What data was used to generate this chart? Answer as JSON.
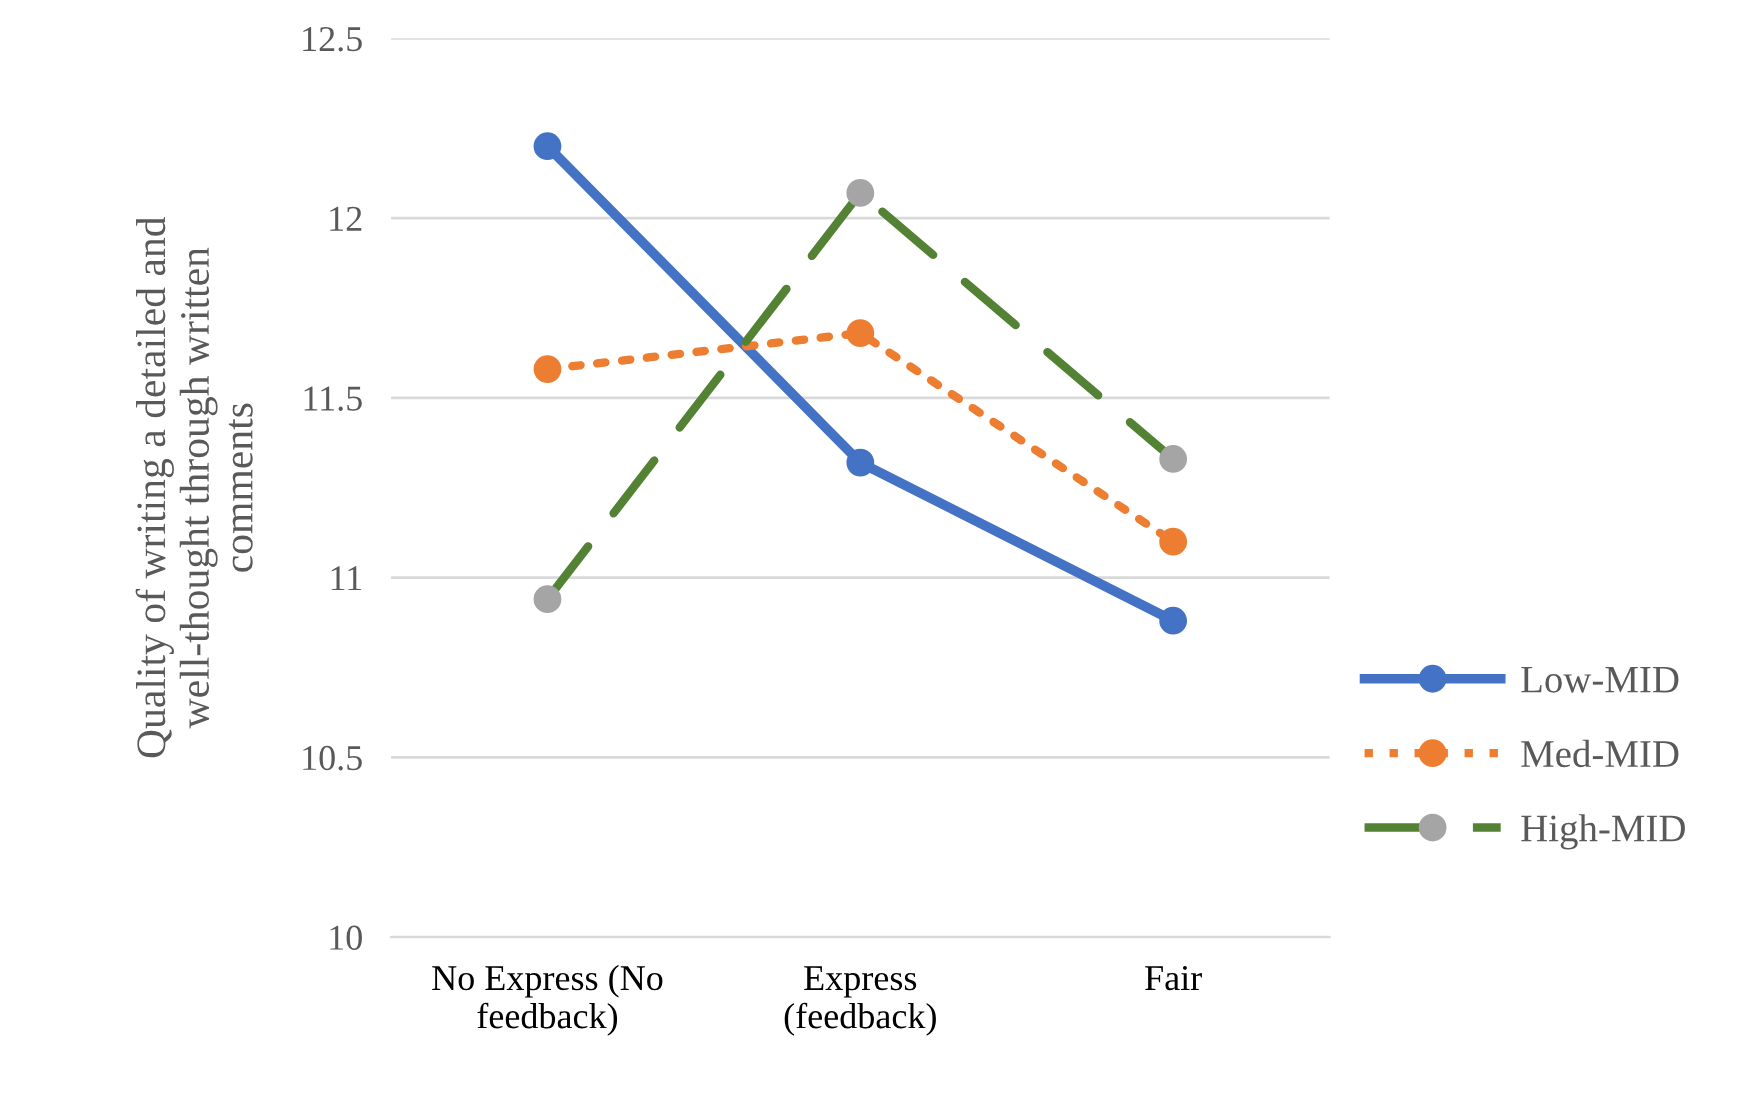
{
  "chart_data": {
    "type": "line",
    "ylabel": "Quality of writing a detailed and\nwell-thought through written\ncomments",
    "categories": [
      "No Express (No\nfeedback)",
      "Express\n(feedback)",
      "Fair"
    ],
    "series": [
      {
        "name": "Low-MID",
        "color": "#4472c4",
        "values": [
          12.2,
          11.32,
          10.88
        ],
        "line_style": "solid"
      },
      {
        "name": "Med-MID",
        "color": "#ed7d31",
        "values": [
          11.58,
          11.68,
          11.1
        ],
        "line_style": "dotted"
      },
      {
        "name": "High-MID",
        "color": "#548235",
        "colors": [
          "#a5a5a5",
          "#a5a5a5",
          "#a5a5a5"
        ],
        "values": [
          10.94,
          12.07,
          11.33
        ],
        "line_style": "dashed"
      }
    ],
    "ylim": [
      10,
      12.5
    ],
    "yticks": [
      10,
      10.5,
      11,
      11.5,
      12,
      12.5
    ],
    "grid": "y",
    "legend": "right",
    "marker": "circle"
  }
}
